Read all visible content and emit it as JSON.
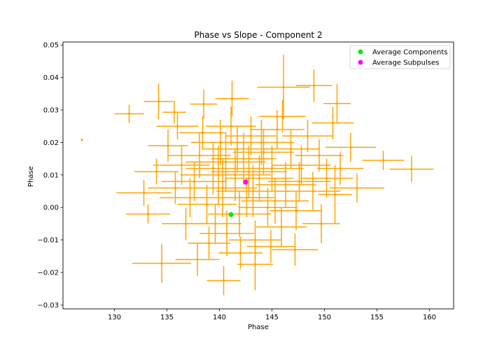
{
  "chart_data": {
    "type": "scatter",
    "title": "Phase vs Slope - Component 2",
    "xlabel": "Phase",
    "ylabel": "Phase",
    "xlim": [
      125.1,
      162.3
    ],
    "ylim": [
      -0.0312,
      0.0509
    ],
    "x_ticks": [
      130,
      135,
      140,
      145,
      150,
      155,
      160
    ],
    "y_ticks": [
      -0.03,
      -0.02,
      -0.01,
      0.0,
      0.01,
      0.02,
      0.03,
      0.04,
      0.05
    ],
    "x_tick_labels": [
      "130",
      "135",
      "140",
      "145",
      "150",
      "155",
      "160"
    ],
    "y_tick_labels": [
      "−0.03",
      "−0.02",
      "−0.01",
      "0.00",
      "0.01",
      "0.02",
      "0.03",
      "0.04",
      "0.05"
    ],
    "grid": false,
    "legend_position": "upper right",
    "legend": [
      {
        "label": "Average Components",
        "color": "#00ee00"
      },
      {
        "label": "Average Subpulses",
        "color": "#ff00ff"
      }
    ],
    "series": [
      {
        "name": "",
        "color": "#ffa500",
        "kind": "errorbar",
        "points": [
          {
            "x": 126.9,
            "y": 0.0208,
            "xerr": 0.0,
            "yerr": 0.0
          },
          {
            "x": 131.4,
            "y": 0.0288,
            "xerr": 1.4,
            "yerr": 0.0028
          },
          {
            "x": 134.2,
            "y": 0.0326,
            "xerr": 1.4,
            "yerr": 0.0055
          },
          {
            "x": 135.7,
            "y": 0.0293,
            "xerr": 1.1,
            "yerr": 0.0035
          },
          {
            "x": 138.5,
            "y": 0.0318,
            "xerr": 1.3,
            "yerr": 0.0045
          },
          {
            "x": 141.2,
            "y": 0.0335,
            "xerr": 1.6,
            "yerr": 0.0055
          },
          {
            "x": 146.1,
            "y": 0.037,
            "xerr": 2.5,
            "yerr": 0.01
          },
          {
            "x": 149.0,
            "y": 0.0375,
            "xerr": 1.7,
            "yerr": 0.005
          },
          {
            "x": 151.2,
            "y": 0.032,
            "xerr": 1.3,
            "yerr": 0.006
          },
          {
            "x": 155.6,
            "y": 0.0145,
            "xerr": 2.0,
            "yerr": 0.003
          },
          {
            "x": 158.3,
            "y": 0.0118,
            "xerr": 2.1,
            "yerr": 0.004
          },
          {
            "x": 153.1,
            "y": 0.006,
            "xerr": 2.6,
            "yerr": 0.0045
          },
          {
            "x": 152.5,
            "y": 0.0185,
            "xerr": 2.4,
            "yerr": 0.0045
          },
          {
            "x": 151.0,
            "y": 0.004,
            "xerr": 1.6,
            "yerr": 0.009
          },
          {
            "x": 149.7,
            "y": -0.005,
            "xerr": 1.8,
            "yerr": 0.006
          },
          {
            "x": 147.2,
            "y": -0.013,
            "xerr": 2.2,
            "yerr": 0.005
          },
          {
            "x": 143.4,
            "y": -0.0175,
            "xerr": 1.7,
            "yerr": 0.008
          },
          {
            "x": 140.4,
            "y": -0.0225,
            "xerr": 1.6,
            "yerr": 0.0045
          },
          {
            "x": 137.9,
            "y": -0.016,
            "xerr": 2.1,
            "yerr": 0.005
          },
          {
            "x": 134.5,
            "y": -0.0172,
            "xerr": 2.8,
            "yerr": 0.006
          },
          {
            "x": 133.2,
            "y": -0.002,
            "xerr": 2.1,
            "yerr": 0.003
          },
          {
            "x": 132.8,
            "y": 0.0045,
            "xerr": 2.6,
            "yerr": 0.004
          },
          {
            "x": 134.0,
            "y": 0.011,
            "xerr": 2.1,
            "yerr": 0.004
          },
          {
            "x": 135.1,
            "y": 0.019,
            "xerr": 1.9,
            "yerr": 0.005
          },
          {
            "x": 136.0,
            "y": 0.025,
            "xerr": 2.0,
            "yerr": 0.004
          },
          {
            "x": 137.6,
            "y": 0.008,
            "xerr": 3.1,
            "yerr": 0.006
          },
          {
            "x": 138.1,
            "y": 0.016,
            "xerr": 3.0,
            "yerr": 0.007
          },
          {
            "x": 138.8,
            "y": 0.001,
            "xerr": 2.8,
            "yerr": 0.006
          },
          {
            "x": 139.4,
            "y": 0.012,
            "xerr": 2.6,
            "yerr": 0.008
          },
          {
            "x": 139.6,
            "y": -0.005,
            "xerr": 2.5,
            "yerr": 0.006
          },
          {
            "x": 140.1,
            "y": 0.02,
            "xerr": 2.8,
            "yerr": 0.007
          },
          {
            "x": 140.3,
            "y": 0.006,
            "xerr": 3.3,
            "yerr": 0.009
          },
          {
            "x": 140.7,
            "y": -0.008,
            "xerr": 2.6,
            "yerr": 0.007
          },
          {
            "x": 141.1,
            "y": 0.025,
            "xerr": 2.4,
            "yerr": 0.006
          },
          {
            "x": 141.5,
            "y": 0.01,
            "xerr": 3.4,
            "yerr": 0.008
          },
          {
            "x": 141.9,
            "y": -0.002,
            "xerr": 3.0,
            "yerr": 0.007
          },
          {
            "x": 142.3,
            "y": 0.015,
            "xerr": 3.1,
            "yerr": 0.008
          },
          {
            "x": 142.6,
            "y": 0.003,
            "xerr": 2.7,
            "yerr": 0.006
          },
          {
            "x": 143.0,
            "y": 0.022,
            "xerr": 2.4,
            "yerr": 0.006
          },
          {
            "x": 143.4,
            "y": -0.01,
            "xerr": 2.5,
            "yerr": 0.006
          },
          {
            "x": 143.8,
            "y": 0.009,
            "xerr": 3.2,
            "yerr": 0.007
          },
          {
            "x": 144.2,
            "y": 0.017,
            "xerr": 2.9,
            "yerr": 0.007
          },
          {
            "x": 144.6,
            "y": 0.0,
            "xerr": 2.8,
            "yerr": 0.006
          },
          {
            "x": 145.0,
            "y": 0.012,
            "xerr": 3.0,
            "yerr": 0.007
          },
          {
            "x": 145.5,
            "y": 0.024,
            "xerr": 2.6,
            "yerr": 0.006
          },
          {
            "x": 145.9,
            "y": -0.006,
            "xerr": 2.4,
            "yerr": 0.006
          },
          {
            "x": 146.3,
            "y": 0.007,
            "xerr": 2.9,
            "yerr": 0.007
          },
          {
            "x": 146.8,
            "y": 0.018,
            "xerr": 2.7,
            "yerr": 0.006
          },
          {
            "x": 147.3,
            "y": -0.001,
            "xerr": 2.5,
            "yerr": 0.006
          },
          {
            "x": 147.8,
            "y": 0.013,
            "xerr": 2.8,
            "yerr": 0.006
          },
          {
            "x": 148.4,
            "y": 0.022,
            "xerr": 2.4,
            "yerr": 0.005
          },
          {
            "x": 148.9,
            "y": 0.005,
            "xerr": 2.6,
            "yerr": 0.006
          },
          {
            "x": 149.5,
            "y": 0.016,
            "xerr": 2.3,
            "yerr": 0.005
          },
          {
            "x": 150.2,
            "y": 0.009,
            "xerr": 2.5,
            "yerr": 0.006
          },
          {
            "x": 150.8,
            "y": 0.026,
            "xerr": 2.0,
            "yerr": 0.005
          },
          {
            "x": 151.5,
            "y": 0.012,
            "xerr": 2.2,
            "yerr": 0.005
          },
          {
            "x": 136.8,
            "y": -0.005,
            "xerr": 2.3,
            "yerr": 0.005
          },
          {
            "x": 137.2,
            "y": 0.003,
            "xerr": 2.9,
            "yerr": 0.006
          },
          {
            "x": 136.4,
            "y": 0.013,
            "xerr": 2.7,
            "yerr": 0.006
          },
          {
            "x": 138.4,
            "y": 0.023,
            "xerr": 2.2,
            "yerr": 0.005
          },
          {
            "x": 139.0,
            "y": -0.011,
            "xerr": 2.0,
            "yerr": 0.005
          },
          {
            "x": 142.0,
            "y": -0.014,
            "xerr": 2.1,
            "yerr": 0.005
          },
          {
            "x": 144.9,
            "y": -0.012,
            "xerr": 2.3,
            "yerr": 0.005
          },
          {
            "x": 146.0,
            "y": 0.028,
            "xerr": 2.2,
            "yerr": 0.005
          },
          {
            "x": 141.7,
            "y": 0.018,
            "xerr": 3.4,
            "yerr": 0.007
          },
          {
            "x": 143.2,
            "y": 0.005,
            "xerr": 3.5,
            "yerr": 0.008
          },
          {
            "x": 139.9,
            "y": 0.01,
            "xerr": 3.6,
            "yerr": 0.009
          },
          {
            "x": 145.3,
            "y": 0.002,
            "xerr": 3.2,
            "yerr": 0.007
          },
          {
            "x": 147.6,
            "y": 0.008,
            "xerr": 3.0,
            "yerr": 0.006
          },
          {
            "x": 135.8,
            "y": 0.006,
            "xerr": 2.6,
            "yerr": 0.005
          },
          {
            "x": 140.6,
            "y": 0.014,
            "xerr": 3.8,
            "yerr": 0.009
          },
          {
            "x": 142.8,
            "y": 0.011,
            "xerr": 3.6,
            "yerr": 0.008
          },
          {
            "x": 144.0,
            "y": 0.02,
            "xerr": 3.1,
            "yerr": 0.007
          }
        ]
      },
      {
        "name": "Average Components",
        "color": "#00ee00",
        "kind": "marker",
        "points": [
          {
            "x": 141.1,
            "y": -0.0022
          }
        ]
      },
      {
        "name": "Average Subpulses",
        "color": "#ff00ff",
        "kind": "marker",
        "points": [
          {
            "x": 142.5,
            "y": 0.0078
          }
        ]
      }
    ]
  }
}
